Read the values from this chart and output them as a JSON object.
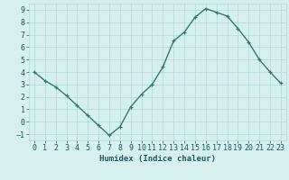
{
  "x": [
    0,
    1,
    2,
    3,
    4,
    5,
    6,
    7,
    8,
    9,
    10,
    11,
    12,
    13,
    14,
    15,
    16,
    17,
    18,
    19,
    20,
    21,
    22,
    23
  ],
  "y": [
    4,
    3.3,
    2.8,
    2.1,
    1.3,
    0.5,
    -0.3,
    -1.1,
    -0.4,
    1.2,
    2.2,
    3.0,
    4.4,
    6.5,
    7.2,
    8.4,
    9.1,
    8.8,
    8.5,
    7.5,
    6.4,
    5.0,
    4.0,
    3.1
  ],
  "line_color": "#2e7d6e",
  "marker": "+",
  "background_color": "#d6f0f0",
  "grid_color": "#afd8d8",
  "xlabel": "Humidex (Indice chaleur)",
  "ylim": [
    -1.5,
    9.5
  ],
  "xlim": [
    -0.5,
    23.5
  ],
  "yticks": [
    -1,
    0,
    1,
    2,
    3,
    4,
    5,
    6,
    7,
    8,
    9
  ],
  "xticks": [
    0,
    1,
    2,
    3,
    4,
    5,
    6,
    7,
    8,
    9,
    10,
    11,
    12,
    13,
    14,
    15,
    16,
    17,
    18,
    19,
    20,
    21,
    22,
    23
  ],
  "tick_color": "#1a5c5c",
  "xlabel_fontsize": 6.5,
  "tick_fontsize": 6.0,
  "linewidth": 1.0,
  "markersize": 3.5
}
